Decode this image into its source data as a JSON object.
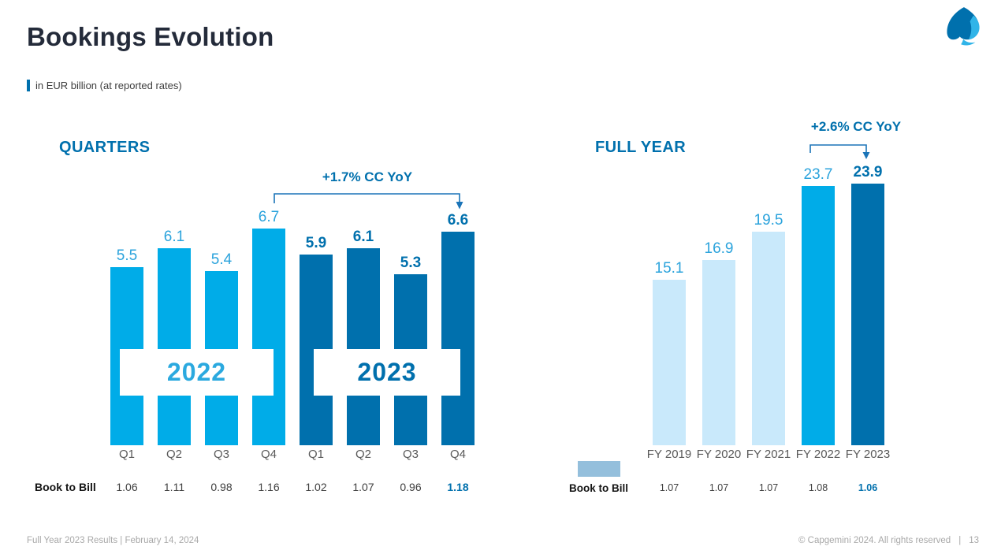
{
  "slide": {
    "title": "Bookings Evolution",
    "subtitle": "in EUR billion (at reported rates)"
  },
  "colors": {
    "light_blue_bar": "#00ACE8",
    "dark_blue_bar": "#0070AD",
    "pale_blue_bar": "#C9E9FB",
    "value_label_light": "#2BA3DC",
    "value_label_dark": "#0070AD",
    "heading_blue": "#0070AD",
    "bracket_blue": "#1B74B8",
    "axis_gray": "#595959",
    "btb_gray": "#404040",
    "btb_highlight": "#0070AD",
    "swatch_blue": "#94BFDC",
    "title_navy": "#242B3A"
  },
  "chart_data": [
    {
      "type": "bar",
      "title": "QUARTERS",
      "unit": "EUR billion",
      "annotation": "+1.7% CC YoY",
      "ylim": [
        0,
        7.5
      ],
      "grid": false,
      "series": [
        {
          "name": "2022",
          "bar_color": "#00ACE8",
          "label_color": "#2BA3DC",
          "label_bold": false,
          "categories": [
            "Q1",
            "Q2",
            "Q3",
            "Q4"
          ],
          "values": [
            5.5,
            6.1,
            5.4,
            6.7
          ],
          "book_to_bill": [
            "1.06",
            "1.11",
            "0.98",
            "1.16"
          ]
        },
        {
          "name": "2023",
          "bar_color": "#0070AD",
          "label_color": "#0070AD",
          "label_bold": true,
          "categories": [
            "Q1",
            "Q2",
            "Q3",
            "Q4"
          ],
          "values": [
            5.9,
            6.1,
            5.3,
            6.6
          ],
          "book_to_bill": [
            "1.02",
            "1.07",
            "0.96",
            "1.18"
          ]
        }
      ],
      "book_to_bill_label": "Book to Bill"
    },
    {
      "type": "bar",
      "title": "FULL YEAR",
      "unit": "EUR billion",
      "annotation": "+2.6% CC YoY",
      "ylim": [
        0,
        26
      ],
      "grid": false,
      "categories": [
        "FY 2019",
        "FY 2020",
        "FY 2021",
        "FY 2022",
        "FY 2023"
      ],
      "values": [
        15.1,
        16.9,
        19.5,
        23.7,
        23.9
      ],
      "bar_colors": [
        "#C9E9FB",
        "#C9E9FB",
        "#C9E9FB",
        "#00ACE8",
        "#0070AD"
      ],
      "label_colors": [
        "#2BA3DC",
        "#2BA3DC",
        "#2BA3DC",
        "#2BA3DC",
        "#0070AD"
      ],
      "label_bold": [
        false,
        false,
        false,
        false,
        true
      ],
      "book_to_bill_label": "Book to Bill",
      "book_to_bill": [
        "1.07",
        "1.07",
        "1.07",
        "1.08",
        "1.06"
      ]
    }
  ],
  "footer": {
    "left": "Full Year 2023 Results |  February 14, 2024",
    "copyright": "© Capgemini 2024. All rights reserved",
    "divider": "|",
    "page": "13"
  }
}
